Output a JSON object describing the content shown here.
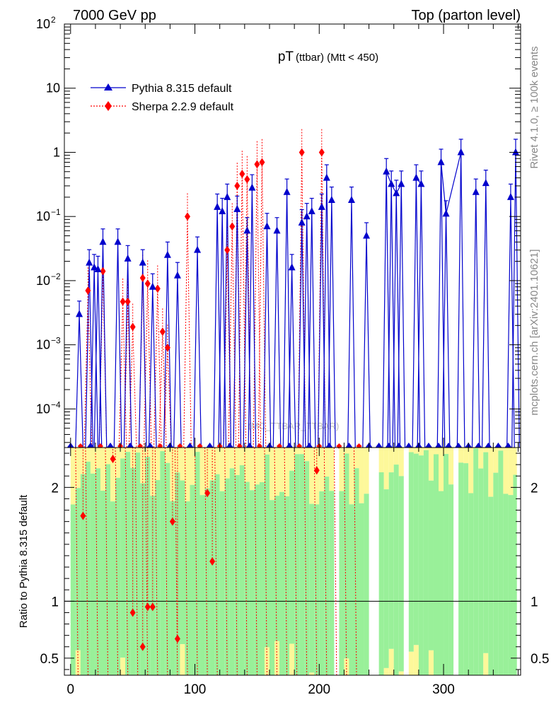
{
  "header": {
    "left": "7000 GeV pp",
    "right": "Top (parton level)"
  },
  "side_labels": {
    "rivet": "Rivet 4.1.0, ≥ 100k events",
    "mcplots": "mcplots.cern.ch [arXiv:2401.10621]"
  },
  "watermark": "(MC_TTBAR_TTBAR)",
  "colors": {
    "pythia": "#0000cc",
    "sherpa": "#ff0000",
    "band_green": "#99f099",
    "band_yellow": "#fdf89a"
  },
  "chart_data": [
    {
      "type": "line",
      "panel": "main",
      "title_main": "pT",
      "title_sub": "(ttbar) (Mtt < 450)",
      "yscale": "log",
      "xlim": [
        -5,
        362
      ],
      "ylim": [
        2.5e-05,
        100
      ],
      "ytick_labels": [
        "10^-4",
        "10^-3",
        "10^-2",
        "10^-1",
        "1",
        "10",
        "10^2"
      ],
      "legend": [
        "Pythia 8.315 default",
        "Sherpa 2.2.9 default"
      ],
      "series": [
        {
          "name": "Pythia 8.315 default",
          "marker": "triangle",
          "x": [
            7,
            15,
            19,
            22,
            26,
            38,
            46,
            58,
            66,
            78,
            86,
            102,
            118,
            122,
            126,
            134,
            142,
            146,
            158,
            166,
            174,
            178,
            186,
            190,
            194,
            202,
            206,
            210,
            226,
            238,
            254,
            258,
            262,
            266,
            278,
            282,
            298,
            302,
            314,
            326,
            334,
            354,
            358
          ],
          "y": [
            0.003,
            0.019,
            0.016,
            0.015,
            0.04,
            0.04,
            0.022,
            0.019,
            0.008,
            0.025,
            0.012,
            0.03,
            0.14,
            0.12,
            0.2,
            0.13,
            0.06,
            0.28,
            0.07,
            0.06,
            0.24,
            0.016,
            0.08,
            0.1,
            0.12,
            0.14,
            0.4,
            0.18,
            0.18,
            0.05,
            0.5,
            0.32,
            0.23,
            0.32,
            0.4,
            0.32,
            0.7,
            0.11,
            1.0,
            0.24,
            0.33,
            0.2,
            1.0
          ]
        },
        {
          "name": "Sherpa 2.2.9 default",
          "marker": "diamond",
          "x": [
            14,
            26,
            42,
            46,
            50,
            58,
            62,
            70,
            74,
            78,
            94,
            126,
            130,
            134,
            138,
            142,
            150,
            154,
            186,
            202
          ],
          "y": [
            0.007,
            0.014,
            0.0047,
            0.0047,
            0.0019,
            0.011,
            0.009,
            0.0075,
            0.0016,
            0.0009,
            0.1,
            0.03,
            0.07,
            0.3,
            0.46,
            0.38,
            0.65,
            0.7,
            1.0,
            1.0
          ]
        }
      ]
    },
    {
      "type": "scatter",
      "panel": "ratio",
      "ylabel": "Ratio to Pythia 8.315 default",
      "xlim": [
        -5,
        362
      ],
      "ylim": [
        0.35,
        2.35
      ],
      "reference_line": 1,
      "xtick_labels": [
        "0",
        "100",
        "200",
        "300"
      ],
      "ytick_labels": [
        "0.5",
        "1",
        "2"
      ],
      "series": [
        {
          "name": "Sherpa 2.2.9 default",
          "x": [
            10,
            34,
            50,
            58,
            62,
            66,
            82,
            86,
            110,
            114,
            198
          ],
          "y": [
            1.75,
            2.25,
            0.9,
            0.6,
            0.95,
            0.95,
            1.7,
            0.67,
            1.95,
            1.35,
            2.15
          ]
        }
      ]
    }
  ]
}
